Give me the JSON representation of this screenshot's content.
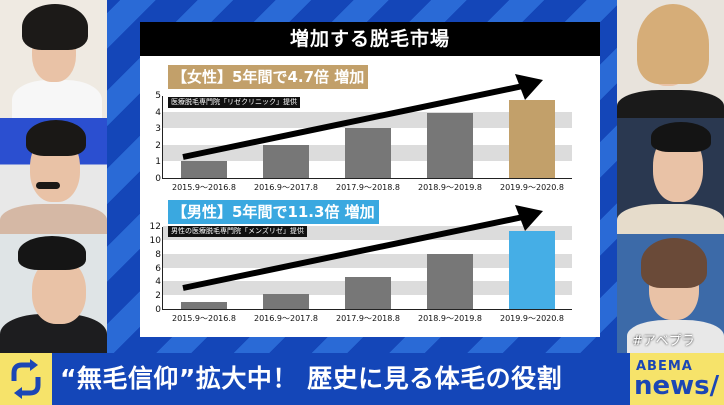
{
  "board": {
    "title": "増加する脱毛市場"
  },
  "female": {
    "tag": "【女性】5年間で4.7倍 増加",
    "tag_color": "#c2a06a",
    "source": "医療脱毛専門院「リゼクリニック」提供"
  },
  "male": {
    "tag": "【男性】5年間で11.3倍 増加",
    "tag_color": "#3aa8e0",
    "source": "男性の医療脱毛専門院「メンズリゼ」提供"
  },
  "chart_data": [
    {
      "type": "bar",
      "title": "【女性】5年間で4.7倍 増加",
      "annotation": "医療脱毛専門院「リゼクリニック」提供",
      "categories": [
        "2015.9～2016.8",
        "2016.9～2017.8",
        "2017.9～2018.8",
        "2018.9～2019.8",
        "2019.9～2020.8"
      ],
      "values": [
        1,
        2,
        3,
        3.9,
        4.7
      ],
      "ylim": [
        0,
        5
      ],
      "yticks": [
        "0",
        "1",
        "2",
        "3",
        "4",
        "5"
      ],
      "bar_colors": [
        "#777777",
        "#777777",
        "#777777",
        "#777777",
        "#c2a06a"
      ],
      "grid": "alternating bands",
      "trend_arrow": true
    },
    {
      "type": "bar",
      "title": "【男性】5年間で11.3倍 増加",
      "annotation": "男性の医療脱毛専門院「メンズリゼ」提供",
      "categories": [
        "2015.9～2016.8",
        "2016.9～2017.8",
        "2017.9～2018.8",
        "2018.9～2019.8",
        "2019.9～2020.8"
      ],
      "values": [
        1,
        2.2,
        4.6,
        8,
        11.3
      ],
      "ylim": [
        0,
        12
      ],
      "yticks": [
        "0",
        "2",
        "4",
        "6",
        "8",
        "10",
        "12"
      ],
      "bar_colors": [
        "#777777",
        "#777777",
        "#777777",
        "#777777",
        "#45aee6"
      ],
      "grid": "alternating bands",
      "trend_arrow": true
    }
  ],
  "ticker": {
    "headline": "“無毛信仰”拡大中！ 歴史に見る体毛の役割",
    "logo_top": "ABEMA",
    "logo_bottom": "news/",
    "hashtag": "#アベプラ"
  },
  "icons": {
    "left": "refresh-cycle-icon"
  }
}
